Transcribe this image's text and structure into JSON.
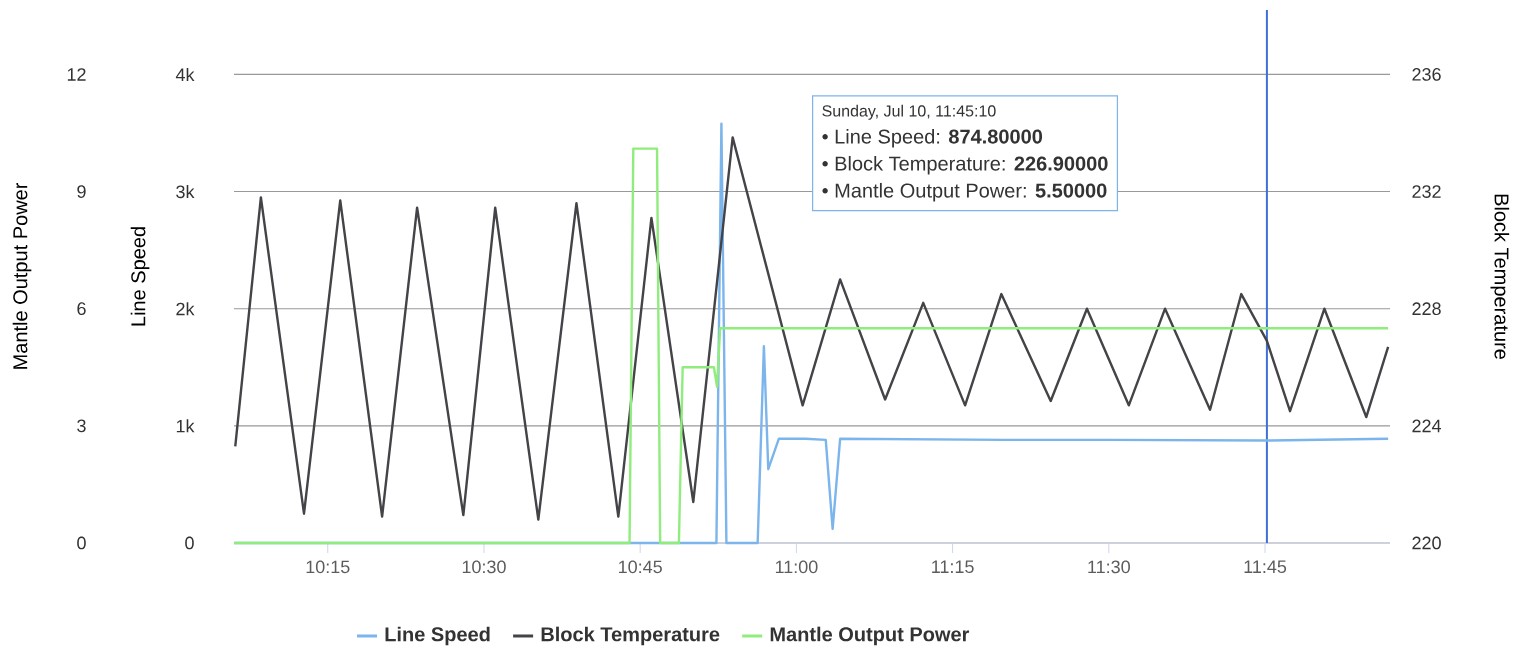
{
  "chart_data": {
    "type": "line",
    "xlim": [
      10.1,
      11.95
    ],
    "xticks": [
      {
        "value": 10.25,
        "label": "10:15"
      },
      {
        "value": 10.5,
        "label": "10:30"
      },
      {
        "value": 10.75,
        "label": "10:45"
      },
      {
        "value": 11.0,
        "label": "11:00"
      },
      {
        "value": 11.25,
        "label": "11:15"
      },
      {
        "value": 11.5,
        "label": "11:30"
      },
      {
        "value": 11.75,
        "label": "11:45"
      }
    ],
    "ylim": [
      0,
      4550
    ],
    "yticks": [
      0,
      {
        "value": 1000,
        "label": "1k"
      },
      {
        "value": 2000,
        "label": "2k"
      },
      {
        "value": 3000,
        "label": "3k"
      },
      {
        "value": 4000,
        "label": "4k"
      }
    ],
    "ylabel": "Line Speed",
    "y2lim": [
      220,
      238.2
    ],
    "y2ticks": [
      220,
      224,
      228,
      232,
      236
    ],
    "y2label": "Block Temperature",
    "y3lim": [
      0,
      13.65
    ],
    "y3ticks": [
      0,
      3,
      6,
      9,
      12
    ],
    "y3label": "Mantle Output Power",
    "grid": "y",
    "legend": "bottom",
    "series": [
      {
        "name": "Line Speed",
        "color": "#7cb5ec",
        "x": [
          10.1,
          10.872,
          10.88,
          10.888,
          10.938,
          10.948,
          10.955,
          10.972,
          11.015,
          11.047,
          11.058,
          11.07,
          11.333,
          11.5,
          11.753,
          11.947
        ],
        "values": [
          0,
          0,
          3580,
          0,
          0,
          1680,
          630,
          890,
          890,
          880,
          120,
          890,
          880,
          880,
          874.8,
          890
        ]
      },
      {
        "name": "Block Temperature",
        "color": "#434348",
        "axis": "y2",
        "x": [
          10.102,
          10.143,
          10.212,
          10.27,
          10.337,
          10.393,
          10.467,
          10.518,
          10.587,
          10.648,
          10.715,
          10.768,
          10.835,
          10.898,
          11.01,
          11.07,
          11.142,
          11.203,
          11.27,
          11.328,
          11.407,
          11.465,
          11.532,
          11.59,
          11.662,
          11.712,
          11.753,
          11.79,
          11.845,
          11.912,
          11.947
        ],
        "values": [
          223.3,
          231.8,
          221.0,
          231.7,
          220.9,
          231.45,
          220.95,
          231.45,
          220.8,
          231.6,
          220.9,
          231.1,
          221.4,
          233.85,
          224.7,
          229.0,
          224.9,
          228.2,
          224.7,
          228.5,
          224.85,
          228.0,
          224.7,
          228.0,
          224.55,
          228.5,
          226.9,
          224.5,
          228.0,
          224.3,
          226.7
        ]
      },
      {
        "name": "Mantle Output Power",
        "color": "#90ed7d",
        "axis": "y3",
        "x": [
          10.1,
          10.733,
          10.739,
          10.777,
          10.782,
          10.812,
          10.818,
          10.868,
          10.873,
          10.878,
          11.947
        ],
        "values": [
          0,
          0,
          10.1,
          10.1,
          0,
          0,
          4.5,
          4.5,
          4.0,
          5.5,
          5.5
        ]
      }
    ],
    "ref_lines": [
      {
        "axis": "x",
        "value": 11.753,
        "color": "#3f6fd8"
      }
    ],
    "annotations": [
      "Sunday, Jul 10, 11:45:10",
      "• Line Speed: **874.80000**",
      "• Block Temperature: **226.90000**",
      "• Mantle Output Power: **5.50000**"
    ]
  }
}
